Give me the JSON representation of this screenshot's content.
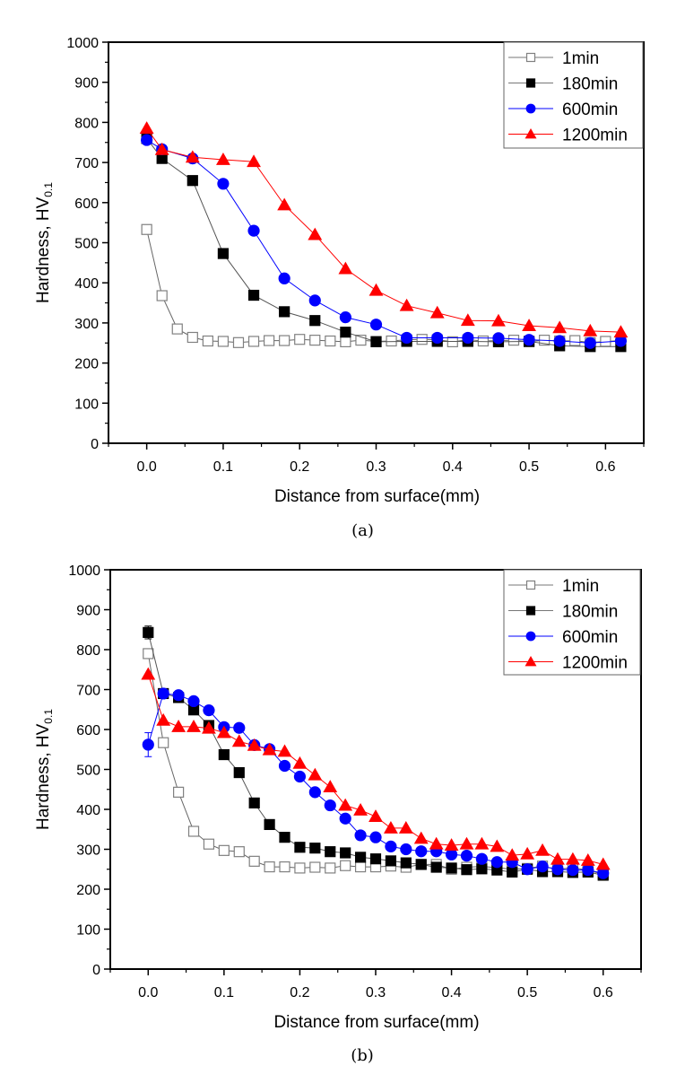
{
  "chart_data": [
    {
      "type": "line",
      "panel": "a",
      "caption": "(a)",
      "title": "",
      "xlabel": "Distance from surface(mm)",
      "ylabel_main": "Hardness, HV",
      "ylabel_sub": "0.1",
      "xlim": [
        -0.05,
        0.65
      ],
      "ylim": [
        0,
        1000
      ],
      "xticks": [
        "0.0",
        "0.1",
        "0.2",
        "0.3",
        "0.4",
        "0.5",
        "0.6"
      ],
      "xtick_values": [
        0.0,
        0.1,
        0.2,
        0.3,
        0.4,
        0.5,
        0.6
      ],
      "yticks": [
        "0",
        "100",
        "200",
        "300",
        "400",
        "500",
        "600",
        "700",
        "800",
        "900",
        "1000"
      ],
      "ytick_values": [
        0,
        100,
        200,
        300,
        400,
        500,
        600,
        700,
        800,
        900,
        1000
      ],
      "grid": false,
      "legend_position": "top-right",
      "series": [
        {
          "name": "1min",
          "marker": "open-square",
          "color": "#808080",
          "fill": "#ffffff",
          "x": [
            0.0,
            0.02,
            0.04,
            0.06,
            0.08,
            0.1,
            0.12,
            0.14,
            0.16,
            0.18,
            0.2,
            0.22,
            0.24,
            0.26,
            0.28,
            0.3,
            0.32,
            0.34,
            0.36,
            0.38,
            0.4,
            0.42,
            0.44,
            0.46,
            0.48,
            0.5,
            0.52,
            0.54,
            0.56,
            0.58,
            0.6,
            0.62
          ],
          "y": [
            533,
            368,
            285,
            264,
            255,
            254,
            251,
            254,
            256,
            256,
            259,
            257,
            255,
            253,
            257,
            254,
            255,
            258,
            259,
            258,
            253,
            258,
            255,
            256,
            257,
            253,
            257,
            255,
            256,
            251,
            254,
            256
          ]
        },
        {
          "name": "180min",
          "marker": "filled-square",
          "color": "#000000",
          "fill": "#000000",
          "x": [
            0.0,
            0.02,
            0.06,
            0.1,
            0.14,
            0.18,
            0.22,
            0.26,
            0.3,
            0.34,
            0.38,
            0.42,
            0.46,
            0.5,
            0.54,
            0.58,
            0.62
          ],
          "y": [
            760,
            710,
            655,
            473,
            369,
            328,
            306,
            277,
            253,
            254,
            254,
            254,
            253,
            254,
            243,
            241,
            241
          ]
        },
        {
          "name": "600min",
          "marker": "filled-circle",
          "color": "#0000ff",
          "fill": "#0000ff",
          "x": [
            0.0,
            0.02,
            0.06,
            0.1,
            0.14,
            0.18,
            0.22,
            0.26,
            0.3,
            0.34,
            0.38,
            0.42,
            0.46,
            0.5,
            0.54,
            0.58,
            0.62
          ],
          "y": [
            756,
            733,
            710,
            647,
            530,
            411,
            356,
            314,
            296,
            263,
            263,
            263,
            262,
            258,
            255,
            250,
            255
          ]
        },
        {
          "name": "1200min",
          "marker": "filled-triangle",
          "color": "#ff0000",
          "fill": "#ff0000",
          "x": [
            0.0,
            0.02,
            0.06,
            0.1,
            0.14,
            0.18,
            0.22,
            0.26,
            0.3,
            0.34,
            0.38,
            0.42,
            0.46,
            0.5,
            0.54,
            0.58,
            0.62
          ],
          "y": [
            785,
            732,
            713,
            707,
            702,
            594,
            520,
            435,
            381,
            343,
            325,
            306,
            305,
            293,
            288,
            280,
            277
          ]
        }
      ]
    },
    {
      "type": "line",
      "panel": "b",
      "caption": "(b)",
      "title": "",
      "xlabel": "Distance from surface(mm)",
      "ylabel_main": "Hardness, HV",
      "ylabel_sub": "0.1",
      "xlim": [
        -0.05,
        0.65
      ],
      "ylim": [
        0,
        1000
      ],
      "xticks": [
        "0.0",
        "0.1",
        "0.2",
        "0.3",
        "0.4",
        "0.5",
        "0.6"
      ],
      "xtick_values": [
        0.0,
        0.1,
        0.2,
        0.3,
        0.4,
        0.5,
        0.6
      ],
      "yticks": [
        "0",
        "100",
        "200",
        "300",
        "400",
        "500",
        "600",
        "700",
        "800",
        "900",
        "1000"
      ],
      "ytick_values": [
        0,
        100,
        200,
        300,
        400,
        500,
        600,
        700,
        800,
        900,
        1000
      ],
      "grid": false,
      "legend_position": "top-right",
      "series": [
        {
          "name": "1min",
          "marker": "open-square",
          "color": "#808080",
          "fill": "#ffffff",
          "x": [
            0.0,
            0.02,
            0.04,
            0.06,
            0.08,
            0.1,
            0.12,
            0.14,
            0.16,
            0.18,
            0.2,
            0.22,
            0.24,
            0.26,
            0.28,
            0.3,
            0.32,
            0.34,
            0.36,
            0.38,
            0.4,
            0.42,
            0.44,
            0.46,
            0.48,
            0.5,
            0.52,
            0.54,
            0.56,
            0.58,
            0.6
          ],
          "y": [
            790,
            567,
            443,
            345,
            313,
            297,
            294,
            270,
            256,
            256,
            253,
            255,
            253,
            259,
            256,
            256,
            258,
            255,
            262,
            262,
            250,
            255,
            257,
            254,
            250,
            252,
            258,
            249,
            255,
            247,
            238
          ],
          "err": [
            10,
            0,
            0,
            0,
            0,
            0,
            0,
            0,
            0,
            0,
            0,
            0,
            0,
            0,
            0,
            0,
            0,
            0,
            0,
            0,
            0,
            0,
            0,
            0,
            0,
            0,
            0,
            0,
            0,
            0,
            0
          ]
        },
        {
          "name": "180min",
          "marker": "filled-square",
          "color": "#000000",
          "fill": "#000000",
          "x": [
            0.0,
            0.02,
            0.04,
            0.06,
            0.08,
            0.1,
            0.12,
            0.14,
            0.16,
            0.18,
            0.2,
            0.22,
            0.24,
            0.26,
            0.28,
            0.3,
            0.32,
            0.34,
            0.36,
            0.38,
            0.4,
            0.42,
            0.44,
            0.46,
            0.48,
            0.5,
            0.52,
            0.54,
            0.56,
            0.58,
            0.6
          ],
          "y": [
            843,
            690,
            680,
            649,
            610,
            537,
            492,
            416,
            362,
            330,
            305,
            303,
            294,
            291,
            280,
            276,
            271,
            266,
            262,
            255,
            253,
            249,
            251,
            248,
            243,
            250,
            244,
            244,
            242,
            243,
            235
          ],
          "err": [
            16,
            0,
            0,
            0,
            0,
            0,
            0,
            0,
            0,
            0,
            0,
            0,
            0,
            0,
            0,
            0,
            0,
            0,
            0,
            0,
            0,
            0,
            0,
            0,
            0,
            0,
            0,
            0,
            0,
            0,
            0
          ]
        },
        {
          "name": "600min",
          "marker": "filled-circle",
          "color": "#0000ff",
          "fill": "#0000ff",
          "x": [
            0.0,
            0.02,
            0.04,
            0.06,
            0.08,
            0.1,
            0.12,
            0.14,
            0.16,
            0.18,
            0.2,
            0.22,
            0.24,
            0.26,
            0.28,
            0.3,
            0.32,
            0.34,
            0.36,
            0.38,
            0.4,
            0.42,
            0.44,
            0.46,
            0.48,
            0.5,
            0.52,
            0.54,
            0.56,
            0.58,
            0.6
          ],
          "y": [
            562,
            690,
            686,
            671,
            648,
            606,
            604,
            561,
            551,
            509,
            482,
            443,
            410,
            377,
            335,
            330,
            307,
            300,
            295,
            295,
            287,
            284,
            276,
            268,
            268,
            250,
            257,
            250,
            248,
            248,
            240
          ],
          "err": [
            30,
            0,
            0,
            0,
            0,
            0,
            0,
            0,
            0,
            0,
            0,
            0,
            0,
            0,
            0,
            0,
            0,
            0,
            0,
            0,
            0,
            0,
            0,
            0,
            0,
            0,
            0,
            0,
            0,
            0,
            0
          ]
        },
        {
          "name": "1200min",
          "marker": "filled-triangle",
          "color": "#ff0000",
          "fill": "#ff0000",
          "x": [
            0.0,
            0.02,
            0.04,
            0.06,
            0.08,
            0.1,
            0.12,
            0.14,
            0.16,
            0.18,
            0.2,
            0.22,
            0.24,
            0.26,
            0.28,
            0.3,
            0.32,
            0.34,
            0.36,
            0.38,
            0.4,
            0.42,
            0.44,
            0.46,
            0.48,
            0.5,
            0.52,
            0.54,
            0.56,
            0.58,
            0.6
          ],
          "y": [
            738,
            623,
            607,
            607,
            603,
            592,
            570,
            560,
            549,
            545,
            515,
            486,
            456,
            410,
            398,
            382,
            353,
            353,
            327,
            313,
            310,
            313,
            313,
            307,
            285,
            288,
            297,
            275,
            275,
            272,
            262
          ]
        }
      ]
    }
  ]
}
